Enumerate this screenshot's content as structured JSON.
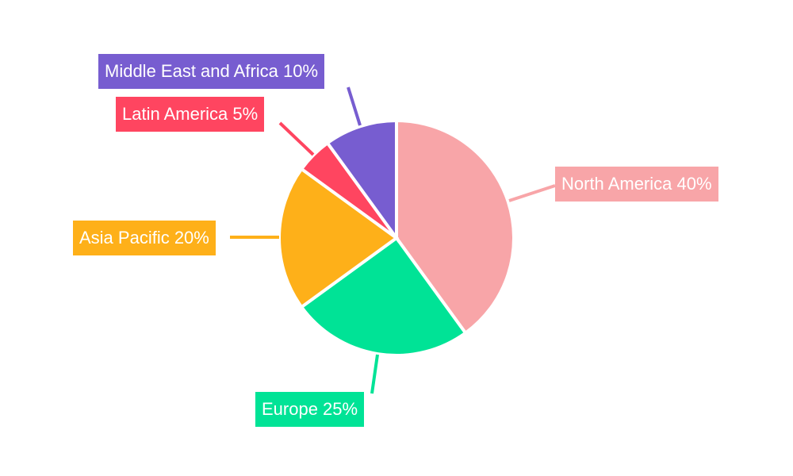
{
  "chart_data": {
    "type": "pie",
    "title": "",
    "categories": [
      "North America",
      "Europe",
      "Asia Pacific",
      "Latin America",
      "Middle East and Africa"
    ],
    "values": [
      40,
      25,
      20,
      5,
      10
    ],
    "colors": [
      "#f8a5a8",
      "#00e396",
      "#feb019",
      "#ff4560",
      "#775dd0"
    ],
    "labels": [
      "North America 40%",
      "Europe 25%",
      "Asia Pacific 20%",
      "Latin America 5%",
      "Middle East and Africa 10%"
    ],
    "start_angle_deg": 0,
    "direction": "clockwise",
    "legend": "none"
  },
  "labels": {
    "north_america": "North America 40%",
    "europe": "Europe 25%",
    "asia_pacific": "Asia Pacific 20%",
    "latin_america": "Latin America 5%",
    "middle_east_africa": "Middle East and Africa 10%"
  }
}
